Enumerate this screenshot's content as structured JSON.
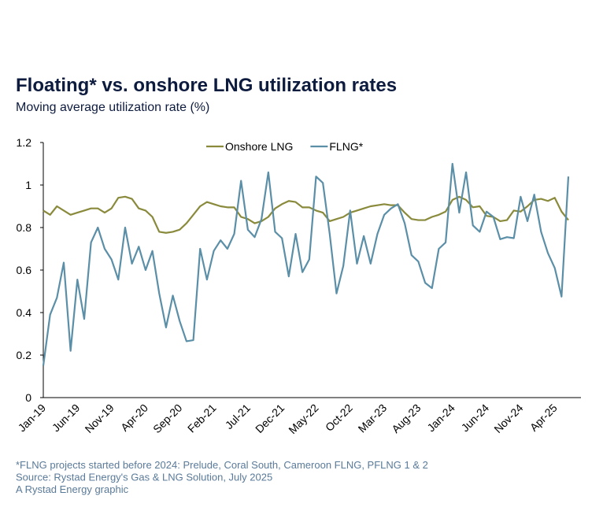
{
  "chart_data": {
    "type": "line",
    "title": "Floating* vs. onshore LNG utilization rates",
    "subtitle": "Moving average utilization rate (%)",
    "categories": [
      "Jan-19",
      null,
      null,
      null,
      null,
      "Jun-19",
      null,
      null,
      null,
      null,
      "Nov-19",
      null,
      null,
      null,
      null,
      "Apr-20",
      null,
      null,
      null,
      null,
      "Sep-20",
      null,
      null,
      null,
      null,
      "Feb-21",
      null,
      null,
      null,
      null,
      "Jul-21",
      null,
      null,
      null,
      null,
      "Dec-21",
      null,
      null,
      null,
      null,
      "May-22",
      null,
      null,
      null,
      null,
      "Oct-22",
      null,
      null,
      null,
      null,
      "Mar-23",
      null,
      null,
      null,
      null,
      "Aug-23",
      null,
      null,
      null,
      null,
      "Jan-24",
      null,
      null,
      null,
      null,
      "Jun-24",
      null,
      null,
      null,
      null,
      "Nov-24",
      null,
      null,
      null,
      null,
      "Apr-25",
      null,
      null
    ],
    "series": [
      {
        "name": "Onshore LNG",
        "color": "#8a8a3c",
        "values": [
          0.88,
          0.86,
          0.9,
          0.88,
          0.86,
          0.87,
          0.88,
          0.89,
          0.89,
          0.87,
          0.89,
          0.94,
          0.945,
          0.935,
          0.89,
          0.88,
          0.85,
          0.78,
          0.775,
          0.78,
          0.79,
          0.82,
          0.86,
          0.9,
          0.92,
          0.91,
          0.9,
          0.895,
          0.895,
          0.85,
          0.84,
          0.82,
          0.83,
          0.85,
          0.89,
          0.91,
          0.925,
          0.92,
          0.895,
          0.895,
          0.88,
          0.87,
          0.83,
          0.84,
          0.85,
          0.87,
          0.88,
          0.89,
          0.9,
          0.905,
          0.91,
          0.905,
          0.905,
          0.87,
          0.84,
          0.835,
          0.835,
          0.85,
          0.86,
          0.875,
          0.93,
          0.945,
          0.93,
          0.895,
          0.9,
          0.855,
          0.85,
          0.83,
          0.835,
          0.88,
          0.875,
          0.9,
          0.93,
          0.935,
          0.925,
          0.94,
          0.875,
          0.835
        ]
      },
      {
        "name": "FLNG*",
        "color": "#5b8fa8",
        "values": [
          0.15,
          0.39,
          0.47,
          0.635,
          0.22,
          0.555,
          0.37,
          0.73,
          0.8,
          0.7,
          0.65,
          0.555,
          0.8,
          0.63,
          0.71,
          0.6,
          0.69,
          0.49,
          0.33,
          0.48,
          0.36,
          0.265,
          0.27,
          0.7,
          0.555,
          0.69,
          0.74,
          0.7,
          0.77,
          1.02,
          0.79,
          0.755,
          0.84,
          1.06,
          0.78,
          0.75,
          0.57,
          0.77,
          0.59,
          0.65,
          1.04,
          1.01,
          0.77,
          0.49,
          0.62,
          0.88,
          0.63,
          0.76,
          0.63,
          0.77,
          0.86,
          0.89,
          0.91,
          0.82,
          0.67,
          0.64,
          0.54,
          0.515,
          0.7,
          0.73,
          1.1,
          0.87,
          1.06,
          0.81,
          0.78,
          0.875,
          0.85,
          0.745,
          0.755,
          0.75,
          0.945,
          0.83,
          0.955,
          0.78,
          0.68,
          0.61,
          0.475,
          1.04
        ]
      }
    ],
    "ylim": [
      0,
      1.2
    ],
    "yticks": [
      0,
      0.2,
      0.4,
      0.6,
      0.8,
      1,
      1.2
    ],
    "grid": false,
    "legend": "top",
    "notes": [
      "*FLNG projects started before 2024: Prelude, Coral South, Cameroon FLNG, PFLNG 1 & 2",
      "Source: Rystad Energy's Gas & LNG Solution, July 2025",
      "A Rystad Energy graphic"
    ]
  }
}
